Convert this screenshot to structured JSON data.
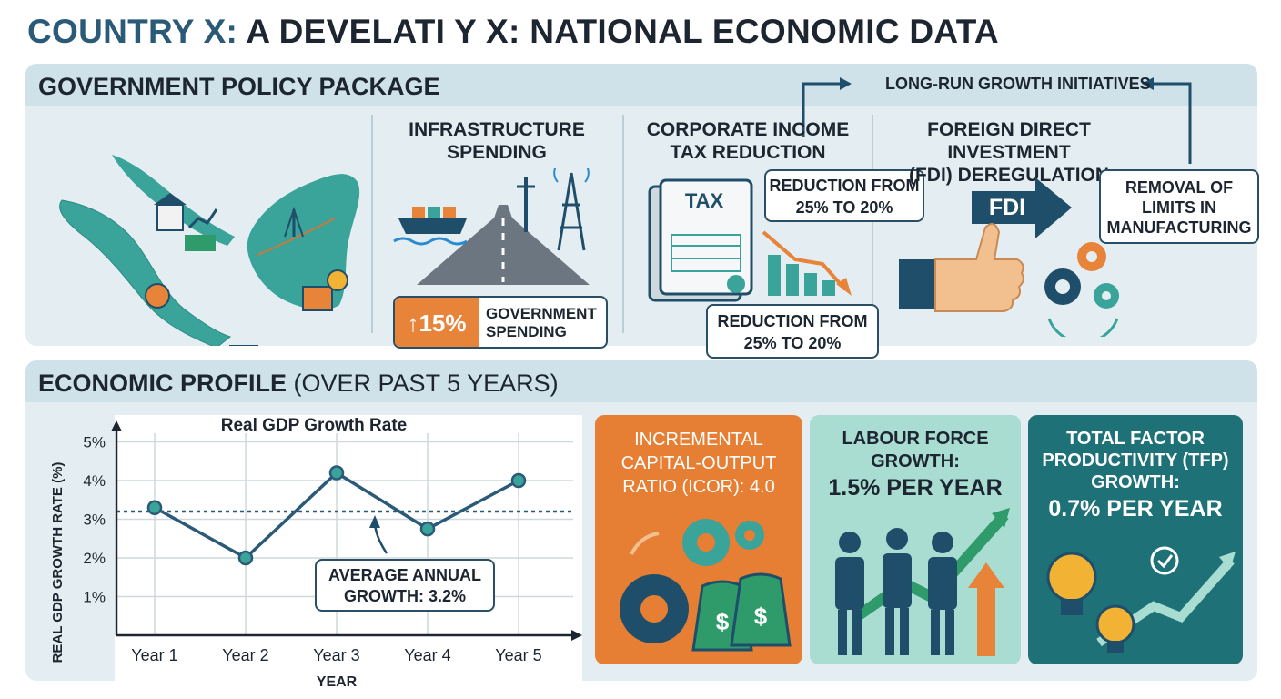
{
  "header": {
    "title_highlight": "COUNTRY X:",
    "title_rest": "A DEVELATI Y X: NATIONAL ECONOMIC DATA"
  },
  "policy_panel": {
    "title": "GOVERNMENT POLICY PACKAGE",
    "long_run_label": "LONG-RUN GROWTH INITIATIVES",
    "infrastructure": {
      "heading_line1": "INFRASTRUCTURE",
      "heading_line2": "SPENDING",
      "badge_value": "↑15%",
      "badge_line1": "GOVERNMENT",
      "badge_line2": "SPENDING"
    },
    "tax": {
      "heading_line1": "CORPORATE INCOME",
      "heading_line2": "TAX REDUCTION",
      "doc_label": "TAX",
      "callout_top_line1": "REDUCTION FROM",
      "callout_top_line2": "25% TO 20%",
      "callout_bottom_line1": "REDUCTION FROM",
      "callout_bottom_line2": "25% TO 20%"
    },
    "fdi": {
      "heading_line1": "FOREIGN DIRECT INVESTMENT",
      "heading_line2": "(FDI) DEREGULATION",
      "arrow_label": "FDI",
      "callout_line1": "REMOVAL OF",
      "callout_line2": "LIMITS IN",
      "callout_line3": "MANUFACTURING"
    },
    "colors": {
      "teal": "#3aa39a",
      "navy": "#1f4e6b",
      "orange": "#e8833a",
      "green": "#2f9a6a"
    }
  },
  "profile_panel": {
    "title_bold": "ECONOMIC PROFILE",
    "title_light": "(OVER PAST 5 YEARS)",
    "average_line1": "AVERAGE ANNUAL",
    "average_line2": "GROWTH: 3.2%",
    "cards": [
      {
        "line1": "INCREMENTAL",
        "line2": "CAPITAL-OUTPUT",
        "line3": "RATIO (ICOR): 4.0",
        "color": "#e67e33"
      },
      {
        "line1": "LABOUR FORCE",
        "line2": "GROWTH:",
        "line3": "1.5% PER YEAR",
        "color": "#a9ddd2"
      },
      {
        "line1": "TOTAL FACTOR",
        "line2": "PRODUCTIVITY (TFP)",
        "line3": "GROWTH:",
        "line4": "0.7% PER YEAR",
        "color": "#1e7277"
      }
    ]
  },
  "chart_data": {
    "type": "line",
    "title": "Real GDP Growth Rate",
    "xlabel": "YEAR",
    "ylabel": "REAL GDP GROWTH RATE (%)",
    "categories": [
      "Year 1",
      "Year 2",
      "Year 3",
      "Year 4",
      "Year 5"
    ],
    "values": [
      3.3,
      2.0,
      4.2,
      2.75,
      4.0
    ],
    "average": 3.2,
    "y_ticks": [
      "1%",
      "2%",
      "3%",
      "4%",
      "5%"
    ],
    "y_tick_values": [
      1,
      2,
      3,
      4,
      5
    ],
    "ylim": [
      0,
      5.5
    ],
    "grid": true,
    "line_color": "#2a5a78"
  }
}
